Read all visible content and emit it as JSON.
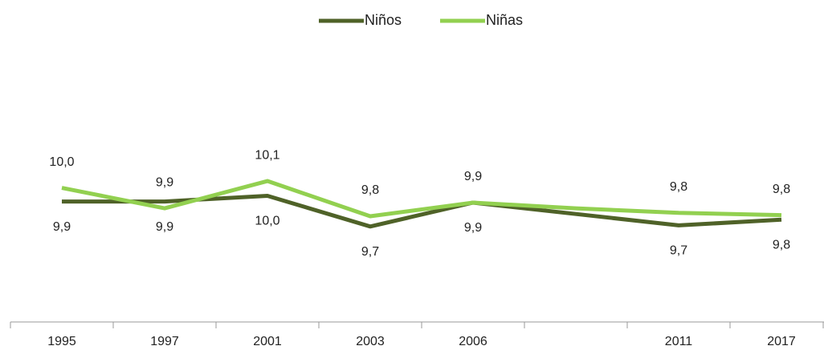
{
  "chart_data": {
    "type": "line",
    "categories": [
      "1995",
      "1997",
      "2001",
      "2003",
      "2006",
      null,
      "2011",
      "2017"
    ],
    "series": [
      {
        "name": "Niños",
        "color": "#4f6228",
        "values": [
          9.92,
          9.92,
          9.97,
          9.7,
          9.91,
          9.81,
          9.71,
          9.76
        ],
        "value_labels": [
          "9,9",
          "9,9",
          "10,0",
          "9,7",
          "9,9",
          null,
          "9,7",
          "9,8"
        ]
      },
      {
        "name": "Niñas",
        "color": "#92d050",
        "values": [
          10.04,
          9.86,
          10.1,
          9.79,
          9.91,
          9.86,
          9.82,
          9.8
        ],
        "value_labels": [
          "10,0",
          "9,9",
          "10,1",
          "9,8",
          "9,9",
          null,
          "9,8",
          "9,8"
        ]
      }
    ],
    "ylim": [
      8.86,
      11.27
    ],
    "legend": "top"
  }
}
